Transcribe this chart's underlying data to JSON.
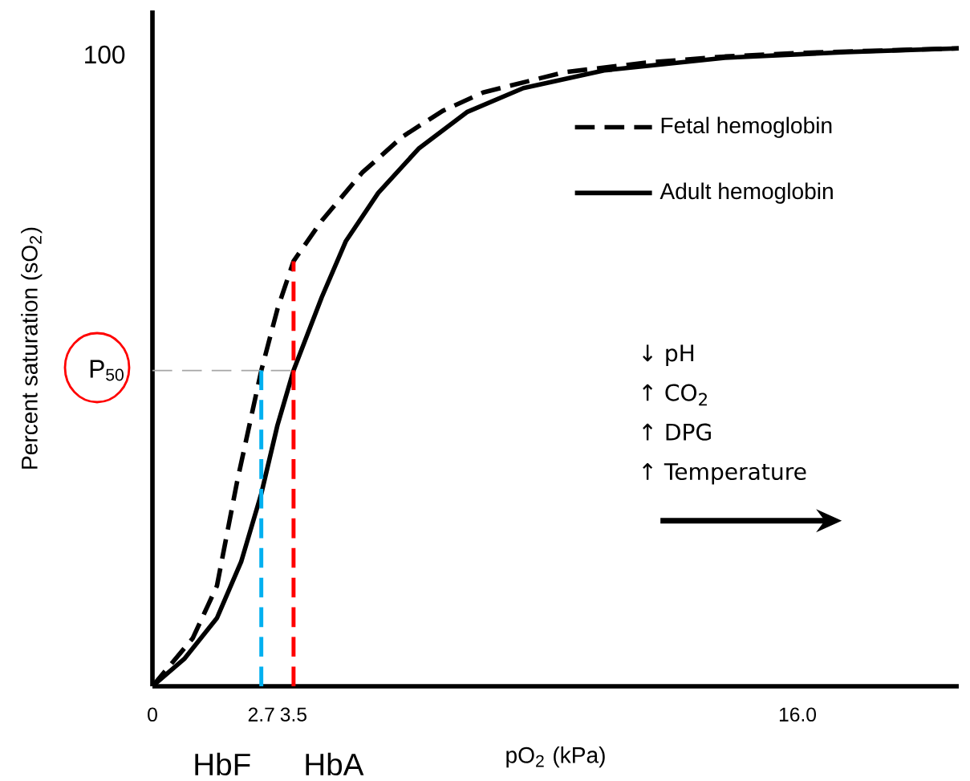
{
  "chart_data": {
    "type": "line",
    "xlabel": "pO$_{2}$ (kPa)",
    "ylabel": "Percent saturation (sO$_{2}$)",
    "xlim": [
      0,
      20
    ],
    "ylim": [
      0,
      107
    ],
    "xticks": [
      0,
      2.7,
      3.5,
      {
        "value": 16,
        "label": "16.0"
      }
    ],
    "yticks": [
      {
        "value": 50,
        "label": "P$_{50}$"
      },
      100
    ],
    "legend": "top right",
    "marker": "none",
    "series": [
      {
        "name": "Fetal hemoglobin",
        "color": "#000000",
        "line_style": "dashed",
        "x": [
          0,
          1.0,
          1.6,
          2.1,
          2.7,
          3.1,
          3.5,
          4.2,
          5.2,
          6.2,
          7.2,
          8.2,
          10.2,
          12.2,
          14.2,
          16.2,
          20
        ],
        "values": [
          0,
          7.6,
          15.9,
          32.4,
          50,
          59.7,
          67.3,
          73.7,
          81.3,
          87.0,
          91.1,
          94.0,
          97.2,
          98.7,
          99.7,
          100.3,
          101
        ]
      },
      {
        "name": "Adult hemoglobin",
        "color": "#000000",
        "line_style": "solid",
        "x": [
          0,
          0.8,
          1.6,
          2.2,
          2.7,
          3.1,
          3.5,
          4.2,
          4.8,
          5.6,
          6.6,
          7.8,
          9.2,
          11.2,
          14.2,
          17.2,
          20
        ],
        "values": [
          0,
          4.4,
          10.8,
          19.7,
          30.5,
          41.3,
          50,
          61.6,
          70.5,
          78.1,
          85.1,
          90.9,
          94.7,
          97.5,
          99.5,
          100.4,
          101
        ]
      }
    ],
    "ref_lines": [
      {
        "axis": "y",
        "value": 50,
        "color": "#a6a6a6",
        "line_style": "dashed"
      },
      {
        "axis": "x",
        "value": 2.7,
        "label": "HbF",
        "color": "#00b0f0",
        "line_style": "dashed"
      },
      {
        "axis": "x",
        "value": 3.5,
        "label": "HbA",
        "color": "#ff0000",
        "line_style": "dashed"
      }
    ],
    "annotations": [
      "↓ pH",
      "↑ CO$_{2}$",
      "↑ DPG",
      "↑ Temperature"
    ]
  }
}
